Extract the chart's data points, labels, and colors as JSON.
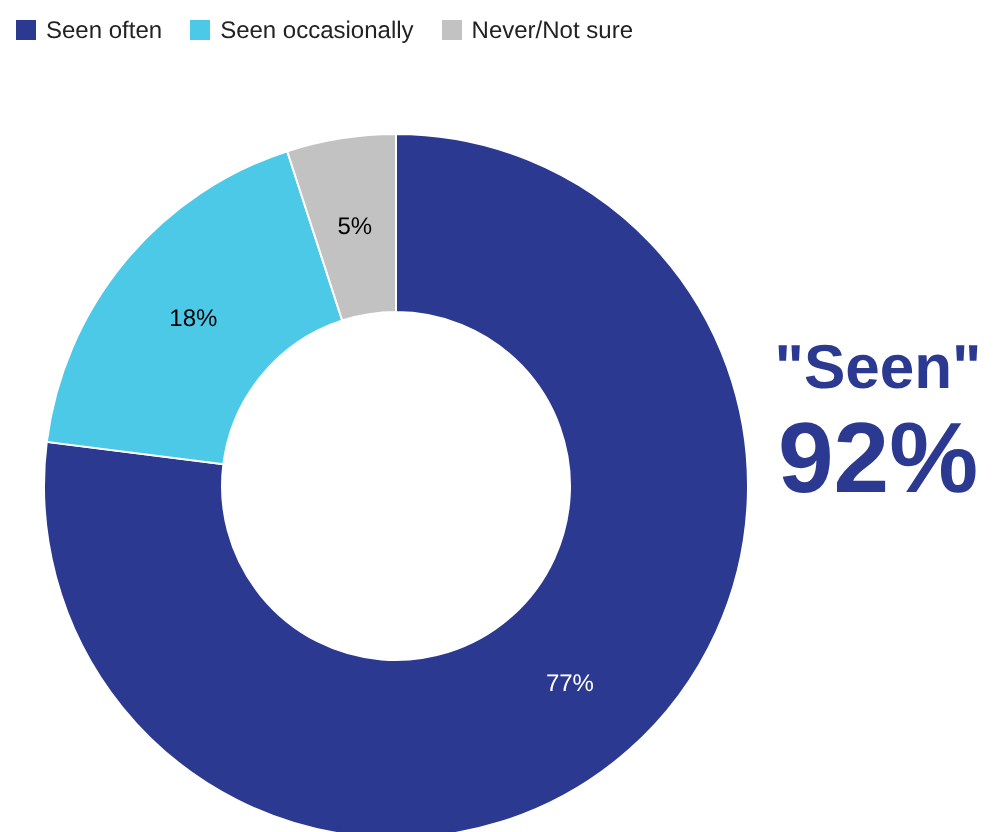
{
  "chart_data": {
    "type": "donut",
    "categories": [
      "Seen often",
      "Seen occasionally",
      "Never/Not sure"
    ],
    "values": [
      77,
      18,
      5
    ],
    "value_labels": [
      "77%",
      "18%",
      "5%"
    ],
    "colors": [
      "#2b3990",
      "#4dc9e8",
      "#c2c2c2"
    ],
    "legend": "top left",
    "annotations": [
      "\"Seen\"",
      "92%"
    ]
  }
}
